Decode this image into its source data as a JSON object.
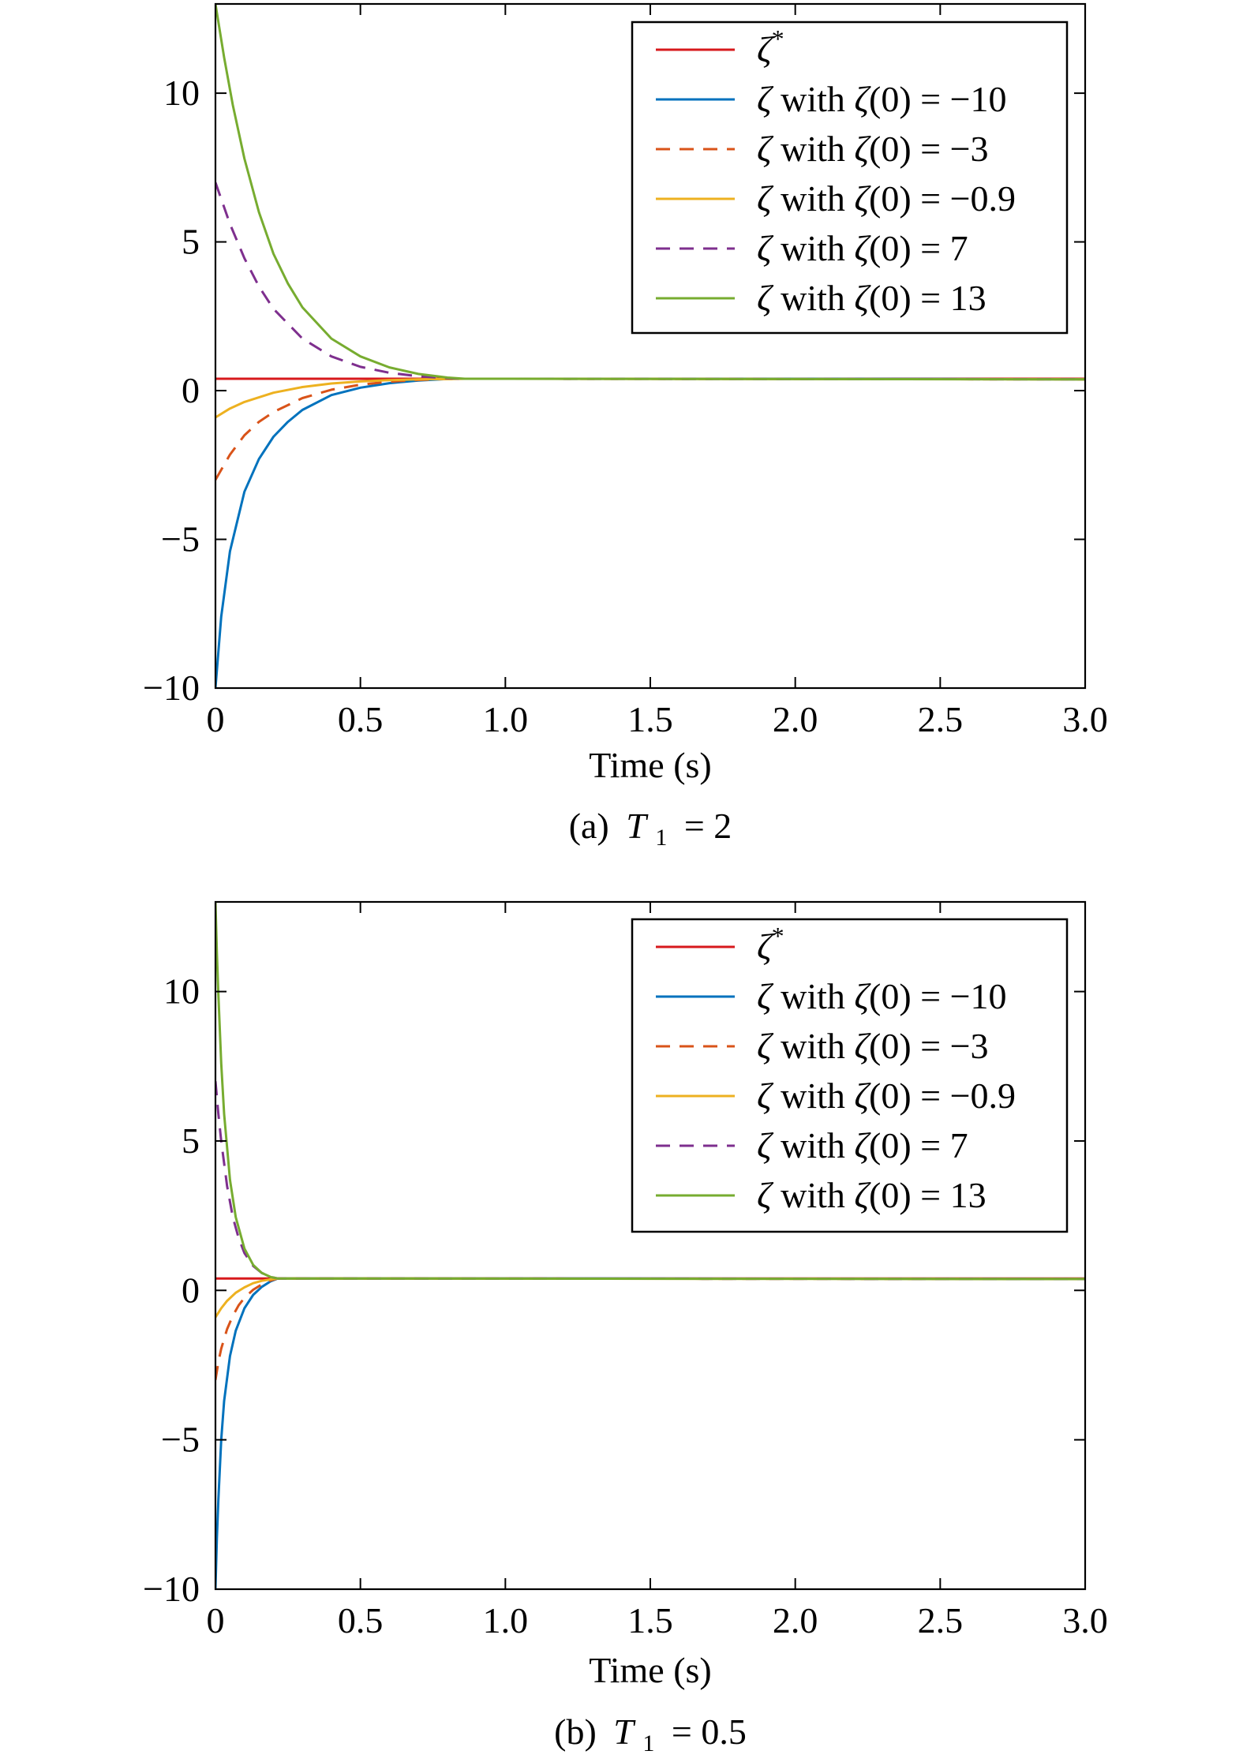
{
  "chart_data": [
    {
      "type": "line",
      "panel_caption": "(a) T₁ = 2",
      "caption_prefix": "(a)",
      "caption_variable": "T",
      "caption_subscript": "1",
      "caption_value": "= 2",
      "xlabel": "Time (s)",
      "ylabel": "",
      "xlim": [
        0,
        3
      ],
      "ylim": [
        -10,
        13
      ],
      "xticks": [
        0,
        0.5,
        1.0,
        1.5,
        2.0,
        2.5,
        3.0
      ],
      "xtick_labels": [
        "0",
        "0.5",
        "1.0",
        "1.5",
        "2.0",
        "2.5",
        "3.0"
      ],
      "yticks": [
        -10,
        -5,
        0,
        5,
        10
      ],
      "ytick_labels": [
        "−10",
        "−5",
        "0",
        "5",
        "10"
      ],
      "grid": false,
      "legend_position": "top-right",
      "series": [
        {
          "name": "ζ*",
          "color": "#d7191c",
          "dash": "solid",
          "x": [
            0,
            3.0
          ],
          "y": [
            0.4,
            0.4
          ]
        },
        {
          "name": "ζ with ζ(0) = −10",
          "color": "#0072bd",
          "dash": "solid",
          "x": [
            0,
            0.02,
            0.05,
            0.1,
            0.15,
            0.2,
            0.25,
            0.3,
            0.4,
            0.5,
            0.6,
            0.7,
            0.8,
            0.86,
            1.0,
            1.5,
            2.0,
            2.5,
            3.0
          ],
          "y": [
            -10,
            -7.6,
            -5.4,
            -3.4,
            -2.3,
            -1.55,
            -1.05,
            -0.65,
            -0.15,
            0.1,
            0.25,
            0.34,
            0.39,
            0.4,
            0.4,
            0.4,
            0.4,
            0.39,
            0.38
          ]
        },
        {
          "name": "ζ with ζ(0) = −3",
          "color": "#d95319",
          "dash": "dashed",
          "x": [
            0,
            0.05,
            0.1,
            0.15,
            0.2,
            0.3,
            0.4,
            0.5,
            0.6,
            0.7,
            0.8,
            0.86,
            1.0,
            3.0
          ],
          "y": [
            -3,
            -2.15,
            -1.5,
            -1.05,
            -0.72,
            -0.25,
            0.03,
            0.2,
            0.3,
            0.36,
            0.39,
            0.4,
            0.4,
            0.38
          ]
        },
        {
          "name": "ζ with ζ(0) = −0.9",
          "color": "#edb120",
          "dash": "solid",
          "x": [
            0,
            0.05,
            0.1,
            0.2,
            0.3,
            0.4,
            0.5,
            0.6,
            0.7,
            0.86,
            1.0,
            3.0
          ],
          "y": [
            -0.9,
            -0.6,
            -0.38,
            -0.07,
            0.12,
            0.24,
            0.31,
            0.35,
            0.38,
            0.4,
            0.4,
            0.38
          ]
        },
        {
          "name": "ζ with ζ(0) = 7",
          "color": "#7e2f8e",
          "dash": "dashed",
          "x": [
            0,
            0.05,
            0.1,
            0.15,
            0.2,
            0.3,
            0.4,
            0.5,
            0.6,
            0.7,
            0.8,
            0.86,
            1.0,
            3.0
          ],
          "y": [
            7,
            5.6,
            4.45,
            3.5,
            2.75,
            1.75,
            1.15,
            0.8,
            0.6,
            0.48,
            0.42,
            0.4,
            0.4,
            0.38
          ]
        },
        {
          "name": "ζ with ζ(0) = 13",
          "color": "#77ac30",
          "dash": "solid",
          "x": [
            0,
            0.03,
            0.06,
            0.1,
            0.15,
            0.2,
            0.25,
            0.3,
            0.4,
            0.5,
            0.6,
            0.7,
            0.8,
            0.86,
            1.0,
            3.0
          ],
          "y": [
            13,
            11.2,
            9.6,
            7.8,
            6.0,
            4.6,
            3.6,
            2.8,
            1.75,
            1.15,
            0.78,
            0.56,
            0.44,
            0.4,
            0.4,
            0.38
          ]
        }
      ]
    },
    {
      "type": "line",
      "panel_caption": "(b) T₁ = 0.5",
      "caption_prefix": "(b)",
      "caption_variable": "T",
      "caption_subscript": "1",
      "caption_value": "= 0.5",
      "xlabel": "Time (s)",
      "ylabel": "",
      "xlim": [
        0,
        3
      ],
      "ylim": [
        -10,
        13
      ],
      "xticks": [
        0,
        0.5,
        1.0,
        1.5,
        2.0,
        2.5,
        3.0
      ],
      "xtick_labels": [
        "0",
        "0.5",
        "1.0",
        "1.5",
        "2.0",
        "2.5",
        "3.0"
      ],
      "yticks": [
        -10,
        -5,
        0,
        5,
        10
      ],
      "ytick_labels": [
        "−10",
        "−5",
        "0",
        "5",
        "10"
      ],
      "grid": false,
      "legend_position": "top-right",
      "series": [
        {
          "name": "ζ*",
          "color": "#d7191c",
          "dash": "solid",
          "x": [
            0,
            3.0
          ],
          "y": [
            0.4,
            0.4
          ]
        },
        {
          "name": "ζ with ζ(0) = −10",
          "color": "#0072bd",
          "dash": "solid",
          "x": [
            0,
            0.005,
            0.01,
            0.02,
            0.03,
            0.05,
            0.07,
            0.1,
            0.13,
            0.16,
            0.19,
            0.215,
            0.25,
            1.0,
            2.0,
            3.0
          ],
          "y": [
            -10,
            -8.3,
            -7.0,
            -5.0,
            -3.7,
            -2.2,
            -1.35,
            -0.6,
            -0.15,
            0.12,
            0.3,
            0.4,
            0.4,
            0.4,
            0.39,
            0.38
          ]
        },
        {
          "name": "ζ with ζ(0) = −3",
          "color": "#d95319",
          "dash": "dashed",
          "x": [
            0,
            0.01,
            0.02,
            0.04,
            0.06,
            0.08,
            0.1,
            0.13,
            0.16,
            0.19,
            0.215,
            0.25,
            3.0
          ],
          "y": [
            -3,
            -2.4,
            -1.95,
            -1.3,
            -0.85,
            -0.5,
            -0.25,
            0.02,
            0.2,
            0.33,
            0.4,
            0.4,
            0.38
          ]
        },
        {
          "name": "ζ with ζ(0) = −0.9",
          "color": "#edb120",
          "dash": "solid",
          "x": [
            0,
            0.02,
            0.04,
            0.07,
            0.1,
            0.13,
            0.16,
            0.19,
            0.215,
            0.25,
            3.0
          ],
          "y": [
            -0.9,
            -0.6,
            -0.35,
            -0.08,
            0.1,
            0.24,
            0.32,
            0.37,
            0.4,
            0.4,
            0.38
          ]
        },
        {
          "name": "ζ with ζ(0) = 7",
          "color": "#7e2f8e",
          "dash": "dashed",
          "x": [
            0,
            0.01,
            0.02,
            0.04,
            0.06,
            0.08,
            0.1,
            0.13,
            0.16,
            0.19,
            0.215,
            0.25,
            3.0
          ],
          "y": [
            7,
            5.9,
            5.0,
            3.5,
            2.45,
            1.75,
            1.25,
            0.82,
            0.58,
            0.45,
            0.4,
            0.4,
            0.38
          ]
        },
        {
          "name": "ζ with ζ(0) = 13",
          "color": "#77ac30",
          "dash": "solid",
          "x": [
            0,
            0.005,
            0.01,
            0.02,
            0.03,
            0.05,
            0.07,
            0.1,
            0.13,
            0.16,
            0.19,
            0.215,
            0.25,
            3.0
          ],
          "y": [
            13,
            11.3,
            9.9,
            7.6,
            5.9,
            3.7,
            2.45,
            1.4,
            0.85,
            0.58,
            0.45,
            0.4,
            0.4,
            0.38
          ]
        }
      ]
    }
  ]
}
